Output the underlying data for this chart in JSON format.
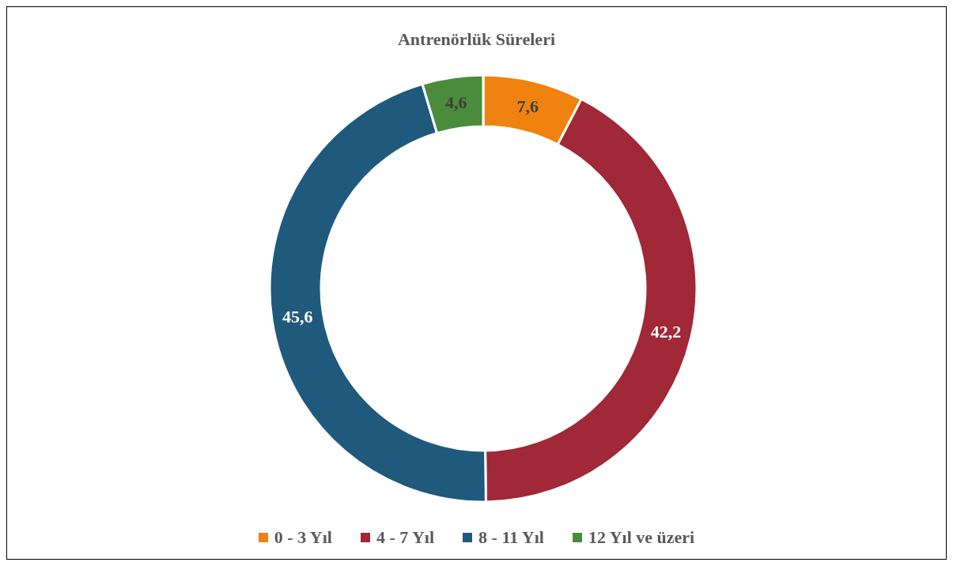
{
  "chart_data": {
    "type": "donut",
    "title": "Antrenörlük Süreleri",
    "categories": [
      "0 - 3 Yıl",
      "4 - 7 Yıl",
      "8 - 11 Yıl",
      "12 Yıl ve üzeri"
    ],
    "values": [
      7.6,
      42.2,
      45.6,
      4.6
    ],
    "colors": [
      "#f0820f",
      "#a02837",
      "#1f5a7d",
      "#4a8c3c"
    ],
    "value_labels": [
      "7,6",
      "42,2",
      "45,6",
      "4,6"
    ],
    "legend": "bottom"
  }
}
